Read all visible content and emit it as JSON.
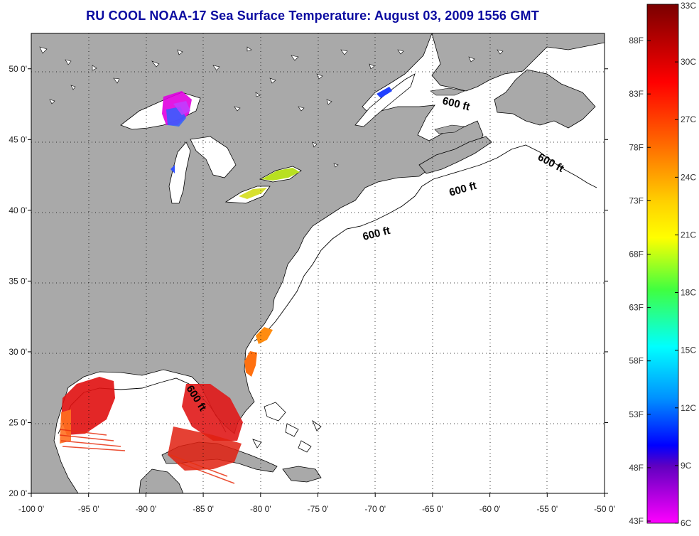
{
  "title": "RU COOL  NOAA-17  Sea Surface Temperature:  August 03, 2009 1556 GMT",
  "map": {
    "lon_range": [
      -100,
      -50
    ],
    "lat_range": [
      20,
      52.5
    ],
    "longitude_ticks": [
      "-100 0'",
      "-95 0'",
      "-90 0'",
      "-85 0'",
      "-80 0'",
      "-75 0'",
      "-70 0'",
      "-65 0'",
      "-60 0'",
      "-55 0'",
      "-50 0'"
    ],
    "latitude_ticks": [
      "50 0'",
      "45 0'",
      "40 0'",
      "35 0'",
      "30 0'",
      "25 0'",
      "20 0'"
    ],
    "contour_labels": [
      "600 ft",
      "600 ft",
      "600 ft",
      "600 ft",
      "600 ft"
    ],
    "land_color": "#a9a9a9",
    "water_color": "#ffffff"
  },
  "colorbar": {
    "fahrenheit_labels": [
      "88F",
      "83F",
      "78F",
      "73F",
      "68F",
      "63F",
      "58F",
      "53F",
      "48F",
      "43F"
    ],
    "celsius_labels": [
      "33C",
      "30C",
      "27C",
      "24C",
      "21C",
      "18C",
      "15C",
      "12C",
      "9C",
      "6C"
    ],
    "colors_top_to_bottom": [
      "#7a0000",
      "#ff0000",
      "#ff8c00",
      "#ffff00",
      "#40ff40",
      "#00ffff",
      "#0080ff",
      "#0000ff",
      "#8000c0",
      "#ff00ff"
    ]
  }
}
